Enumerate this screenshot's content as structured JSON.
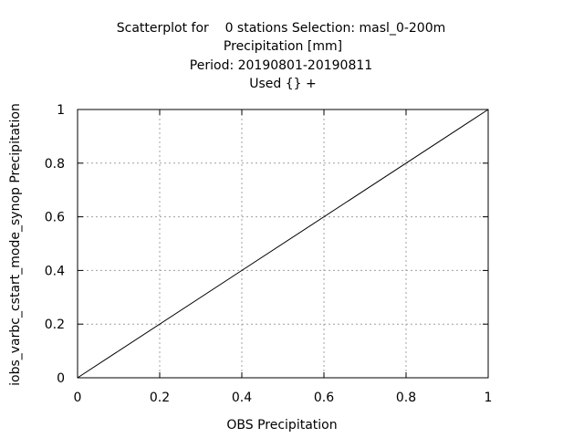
{
  "chart_data": {
    "type": "line",
    "title_lines": [
      "Scatterplot for    0 stations Selection: masl_0-200m",
      "Precipitation [mm]",
      "Period: 20190801-20190811",
      "Used {} +"
    ],
    "xlabel": "OBS Precipitation",
    "ylabel": "iobs_varbc_cstart_mode_synop Precipitation",
    "xlim": [
      0,
      1
    ],
    "ylim": [
      0,
      1
    ],
    "x_ticks": [
      "0",
      "0.2",
      "0.4",
      "0.6",
      "0.8",
      "1"
    ],
    "y_ticks": [
      "0",
      "0.2",
      "0.4",
      "0.6",
      "0.8",
      "1"
    ],
    "grid": true,
    "series": [
      {
        "x": [
          0,
          1
        ],
        "y": [
          0,
          1
        ]
      }
    ]
  }
}
